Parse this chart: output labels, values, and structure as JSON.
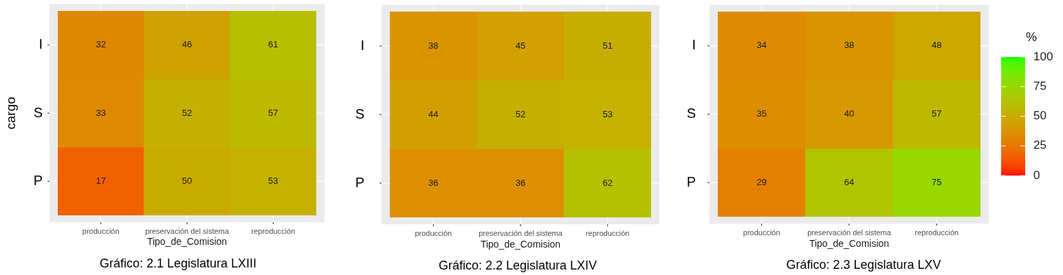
{
  "chart_data": [
    {
      "type": "heatmap",
      "xlabel": "Tipo_de_Comision",
      "ylabel": "cargo",
      "categories": [
        "producción",
        "preservación del sistema",
        "reproducción"
      ],
      "y_categories": [
        "I",
        "S",
        "P"
      ],
      "cells": [
        [
          32,
          46,
          61
        ],
        [
          33,
          52,
          57
        ],
        [
          17,
          50,
          53
        ]
      ],
      "data_labels": true,
      "grid": true,
      "annotations": [
        "Gráfico: 2.1 Legislatura LXIII"
      ]
    },
    {
      "type": "heatmap",
      "xlabel": "Tipo_de_Comision",
      "categories": [
        "producción",
        "preservación del sistema",
        "reproducción"
      ],
      "y_categories": [
        "I",
        "S",
        "P"
      ],
      "cells": [
        [
          38,
          45,
          51
        ],
        [
          44,
          52,
          53
        ],
        [
          36,
          36,
          62
        ]
      ],
      "data_labels": true,
      "grid": true,
      "annotations": [
        "Gráfico: 2.2 Legislatura LXIV"
      ]
    },
    {
      "type": "heatmap",
      "xlabel": "Tipo_de_Comision",
      "categories": [
        "producción",
        "preservación del sistema",
        "reproducción"
      ],
      "y_categories": [
        "I",
        "S",
        "P"
      ],
      "cells": [
        [
          34,
          38,
          48
        ],
        [
          35,
          40,
          57
        ],
        [
          29,
          64,
          75
        ]
      ],
      "data_labels": true,
      "grid": true,
      "clabel": "%",
      "clim": [
        0,
        100
      ],
      "cticks": [
        0,
        25,
        50,
        75,
        100
      ],
      "annotations": [
        "Gráfico: 2.3 Legislatura LXV"
      ]
    }
  ]
}
